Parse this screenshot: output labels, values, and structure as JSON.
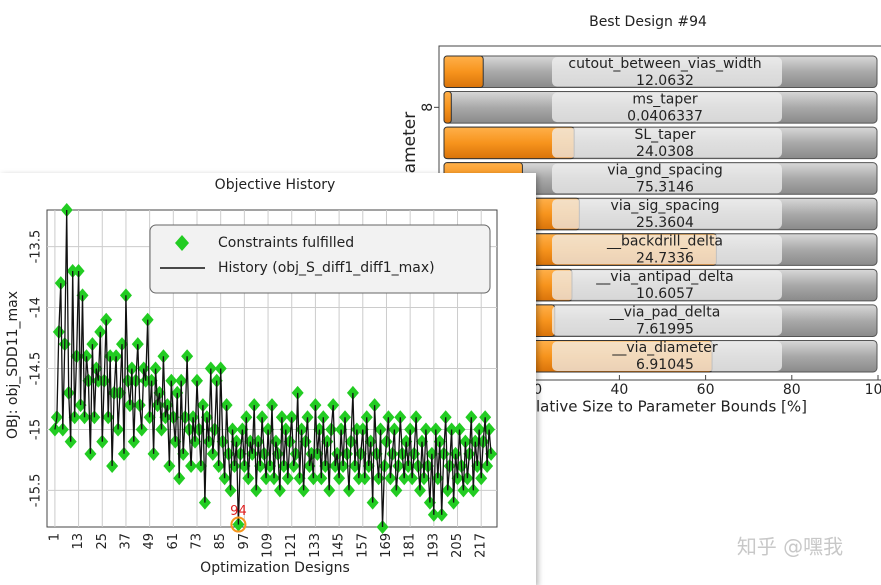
{
  "chart_data": [
    {
      "type": "bar",
      "orientation": "horizontal",
      "title": "Best Design #94",
      "categories": [
        "cutout_between_vias_width",
        "ms_taper",
        "SL_taper",
        "via_gnd_spacing",
        "via_sig_spacing",
        "__backdrill_delta",
        "__via_antipad_delta",
        "__via_pad_delta",
        "__via_diameter"
      ],
      "design_values": [
        12.0632,
        0.0406337,
        24.0308,
        75.3146,
        25.3604,
        24.7336,
        10.6057,
        7.61995,
        6.91045
      ],
      "values": [
        8.4,
        1,
        29.5,
        17.5,
        30.7,
        62.5,
        29,
        25,
        61.5
      ],
      "color": "#f7941d",
      "xlabel": "Relative Size to Parameter Bounds [%]",
      "ylabel": "Parameter",
      "xlim": [
        0,
        100
      ],
      "xticks": [
        0,
        20,
        40,
        60,
        80,
        100
      ],
      "ylim": [
        0.5,
        9.5
      ],
      "yticks": [
        8
      ]
    },
    {
      "type": "line",
      "title": "Objective History",
      "xlabel": "Optimization Designs",
      "ylabel": "OBJ: obj_SDD11_max",
      "xlim": [
        -3,
        225
      ],
      "xticks": [
        1,
        13,
        25,
        37,
        49,
        61,
        73,
        85,
        97,
        109,
        121,
        133,
        145,
        157,
        169,
        181,
        193,
        205,
        217
      ],
      "ylim": [
        -15.8,
        -13.2
      ],
      "yticks": [
        -13.5,
        -14,
        -14.5,
        -15,
        -15.5
      ],
      "legend": "top-right",
      "x": [
        1,
        2,
        3,
        4,
        5,
        6,
        7,
        8,
        9,
        10,
        11,
        12,
        13,
        14,
        15,
        16,
        17,
        18,
        19,
        20,
        21,
        22,
        23,
        24,
        25,
        26,
        27,
        28,
        29,
        30,
        31,
        32,
        33,
        34,
        35,
        36,
        37,
        38,
        39,
        40,
        41,
        42,
        43,
        44,
        45,
        46,
        47,
        48,
        49,
        50,
        51,
        52,
        53,
        54,
        55,
        56,
        57,
        58,
        59,
        60,
        61,
        62,
        63,
        64,
        65,
        66,
        67,
        68,
        69,
        70,
        71,
        72,
        73,
        74,
        75,
        76,
        77,
        78,
        79,
        80,
        81,
        82,
        83,
        84,
        85,
        86,
        87,
        88,
        89,
        90,
        91,
        92,
        93,
        94,
        95,
        96,
        97,
        98,
        99,
        100,
        101,
        102,
        103,
        104,
        105,
        106,
        107,
        108,
        109,
        110,
        111,
        112,
        113,
        114,
        115,
        116,
        117,
        118,
        119,
        120,
        121,
        122,
        123,
        124,
        125,
        126,
        127,
        128,
        129,
        130,
        131,
        132,
        133,
        134,
        135,
        136,
        137,
        138,
        139,
        140,
        141,
        142,
        143,
        144,
        145,
        146,
        147,
        148,
        149,
        150,
        151,
        152,
        153,
        154,
        155,
        156,
        157,
        158,
        159,
        160,
        161,
        162,
        163,
        164,
        165,
        166,
        167,
        168,
        169,
        170,
        171,
        172,
        173,
        174,
        175,
        176,
        177,
        178,
        179,
        180,
        181,
        182,
        183,
        184,
        185,
        186,
        187,
        188,
        189,
        190,
        191,
        192,
        193,
        194,
        195,
        196,
        197,
        198,
        199,
        200,
        201,
        202,
        203,
        204,
        205,
        206,
        207,
        208,
        209,
        210,
        211,
        212,
        213,
        214,
        215,
        216,
        217,
        218,
        219,
        220,
        221,
        222
      ],
      "series": [
        {
          "name": "Constraints fulfilled",
          "color": "#22cc22",
          "marker": "diamond"
        },
        {
          "name": "History (obj_S_diff1_diff1_max)",
          "color": "#111111",
          "values": [
            -15.0,
            -14.9,
            -14.2,
            -13.8,
            -15.0,
            -14.3,
            -13.2,
            -14.7,
            -15.1,
            -13.7,
            -14.9,
            -14.4,
            -13.7,
            -14.8,
            -13.9,
            -14.9,
            -14.4,
            -14.6,
            -15.2,
            -14.3,
            -14.9,
            -14.5,
            -14.6,
            -14.2,
            -15.1,
            -14.6,
            -14.1,
            -14.9,
            -14.4,
            -15.3,
            -14.7,
            -14.4,
            -15.0,
            -14.7,
            -14.3,
            -15.2,
            -13.9,
            -14.6,
            -14.8,
            -14.5,
            -15.1,
            -14.6,
            -14.3,
            -14.8,
            -15.0,
            -14.5,
            -14.6,
            -14.1,
            -14.9,
            -14.6,
            -15.2,
            -14.5,
            -14.8,
            -14.7,
            -15.0,
            -14.4,
            -14.9,
            -14.8,
            -15.3,
            -14.6,
            -14.9,
            -15.1,
            -14.7,
            -15.4,
            -14.6,
            -15.2,
            -14.9,
            -14.4,
            -15.0,
            -15.3,
            -14.9,
            -15.1,
            -14.6,
            -15.0,
            -15.3,
            -14.8,
            -15.6,
            -14.9,
            -15.1,
            -14.5,
            -15.2,
            -15.0,
            -14.6,
            -15.3,
            -14.5,
            -15.1,
            -15.4,
            -14.8,
            -15.2,
            -15.5,
            -15.0,
            -15.3,
            -15.1,
            -15.78,
            -15.2,
            -15.0,
            -15.3,
            -14.9,
            -15.4,
            -15.1,
            -15.2,
            -14.8,
            -15.5,
            -15.1,
            -15.3,
            -14.9,
            -15.2,
            -15.4,
            -15.0,
            -15.3,
            -14.8,
            -15.4,
            -15.1,
            -15.2,
            -15.5,
            -14.9,
            -15.3,
            -15.0,
            -15.4,
            -15.1,
            -14.9,
            -15.3,
            -15.2,
            -14.7,
            -15.4,
            -15.0,
            -15.5,
            -15.1,
            -14.9,
            -15.3,
            -15.2,
            -15.4,
            -14.8,
            -15.2,
            -15.0,
            -15.4,
            -14.9,
            -15.3,
            -15.1,
            -15.5,
            -15.0,
            -14.8,
            -15.3,
            -15.2,
            -15.4,
            -15.0,
            -15.3,
            -14.9,
            -15.2,
            -15.5,
            -15.1,
            -14.7,
            -15.3,
            -15.0,
            -15.4,
            -15.2,
            -15.0,
            -15.4,
            -14.9,
            -15.3,
            -15.1,
            -15.6,
            -14.8,
            -15.2,
            -15.4,
            -15.0,
            -15.8,
            -15.3,
            -15.1,
            -14.9,
            -15.4,
            -15.2,
            -15.0,
            -15.5,
            -15.3,
            -14.9,
            -15.2,
            -15.4,
            -15.1,
            -15.3,
            -15.0,
            -15.4,
            -15.2,
            -14.9,
            -15.3,
            -15.5,
            -15.1,
            -15.4,
            -15.0,
            -15.3,
            -15.6,
            -15.2,
            -15.7,
            -15.0,
            -15.4,
            -15.1,
            -15.7,
            -15.2,
            -14.9,
            -15.5,
            -15.3,
            -15.0,
            -15.6,
            -15.2,
            -15.4,
            -15.0,
            -15.3,
            -15.5,
            -15.1,
            -15.4,
            -15.2,
            -14.9,
            -15.5,
            -15.1,
            -15.3,
            -15.0,
            -15.4,
            -15.1,
            -14.9,
            -15.3,
            -15.0,
            -15.2
          ]
        }
      ],
      "annotation": {
        "text": "94",
        "x": 94,
        "y": -15.78,
        "color": "#e02020"
      }
    }
  ],
  "watermark": "知乎 @嘿我"
}
